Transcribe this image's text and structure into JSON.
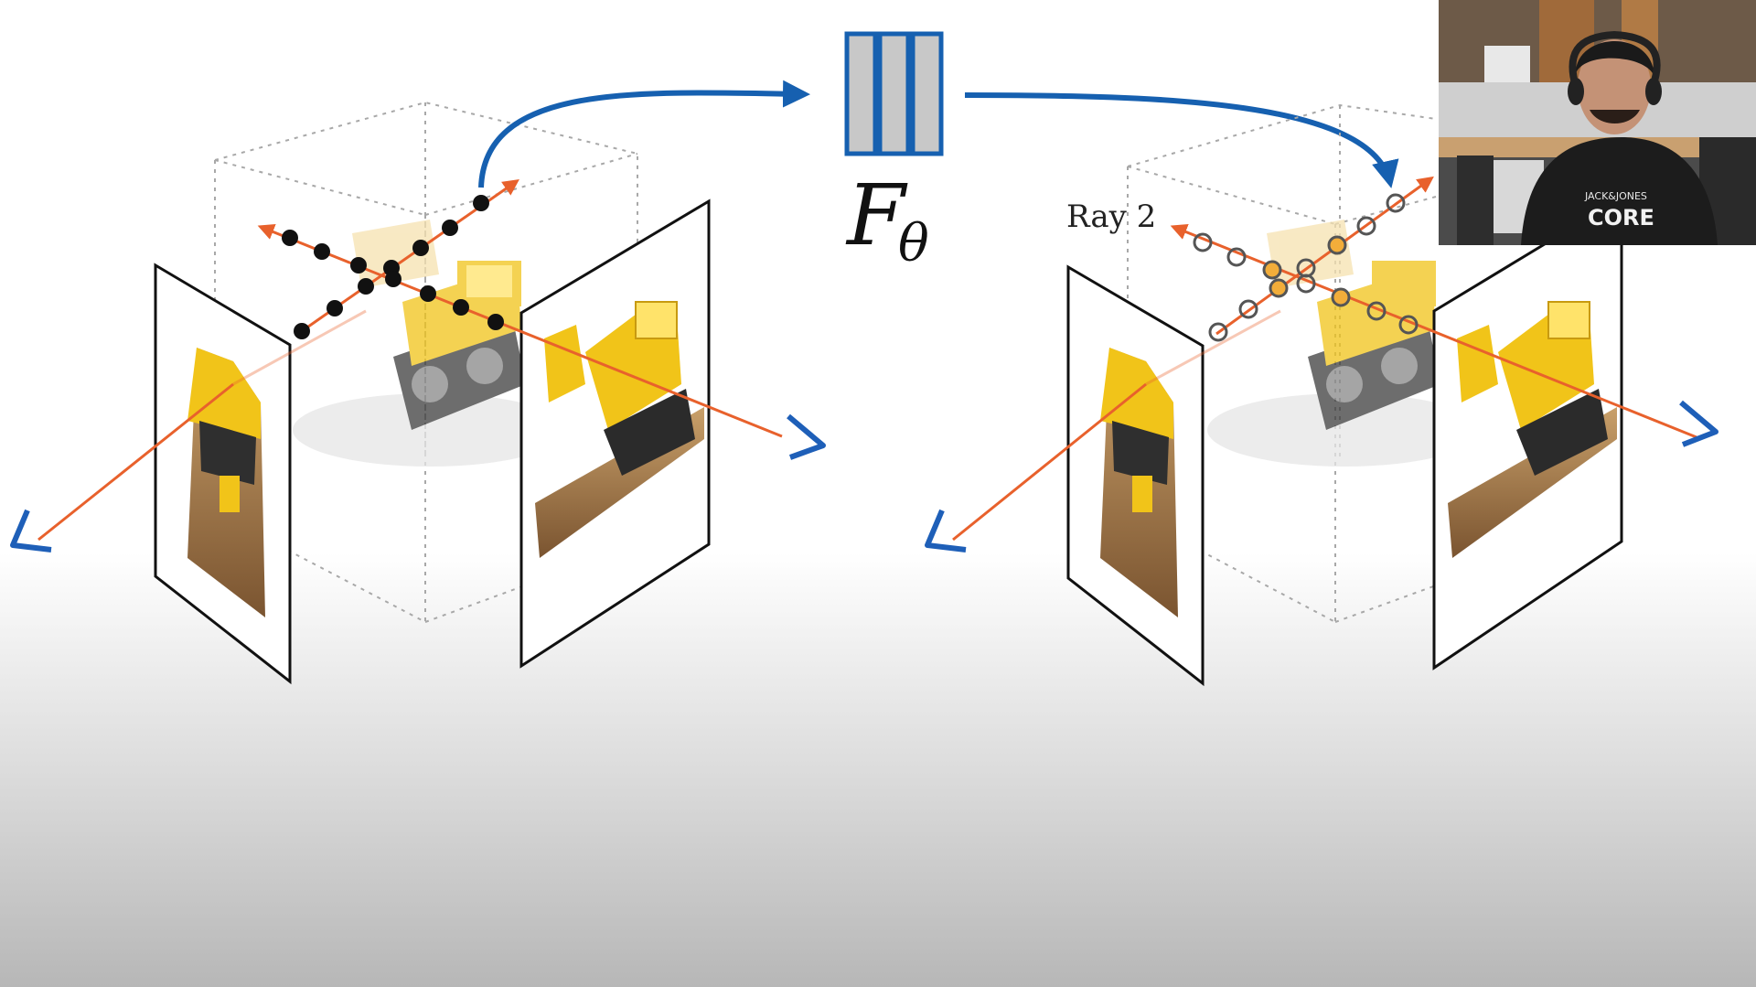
{
  "diagram": {
    "network_label_main": "F",
    "network_label_sub": "θ",
    "ray_label": "Ray 2"
  },
  "webcam": {
    "shirt_text_top": "JACK&JONES",
    "shirt_text_main": "CORE"
  },
  "colors": {
    "ray": "#e8612c",
    "arrow_blue": "#1660b0",
    "camera_blue": "#1e5fb8",
    "network_fill": "#c8c8c8",
    "point_fill": "#111111",
    "point_highlight": "#f2ad3a",
    "bulldozer_yellow": "#f1c419"
  }
}
